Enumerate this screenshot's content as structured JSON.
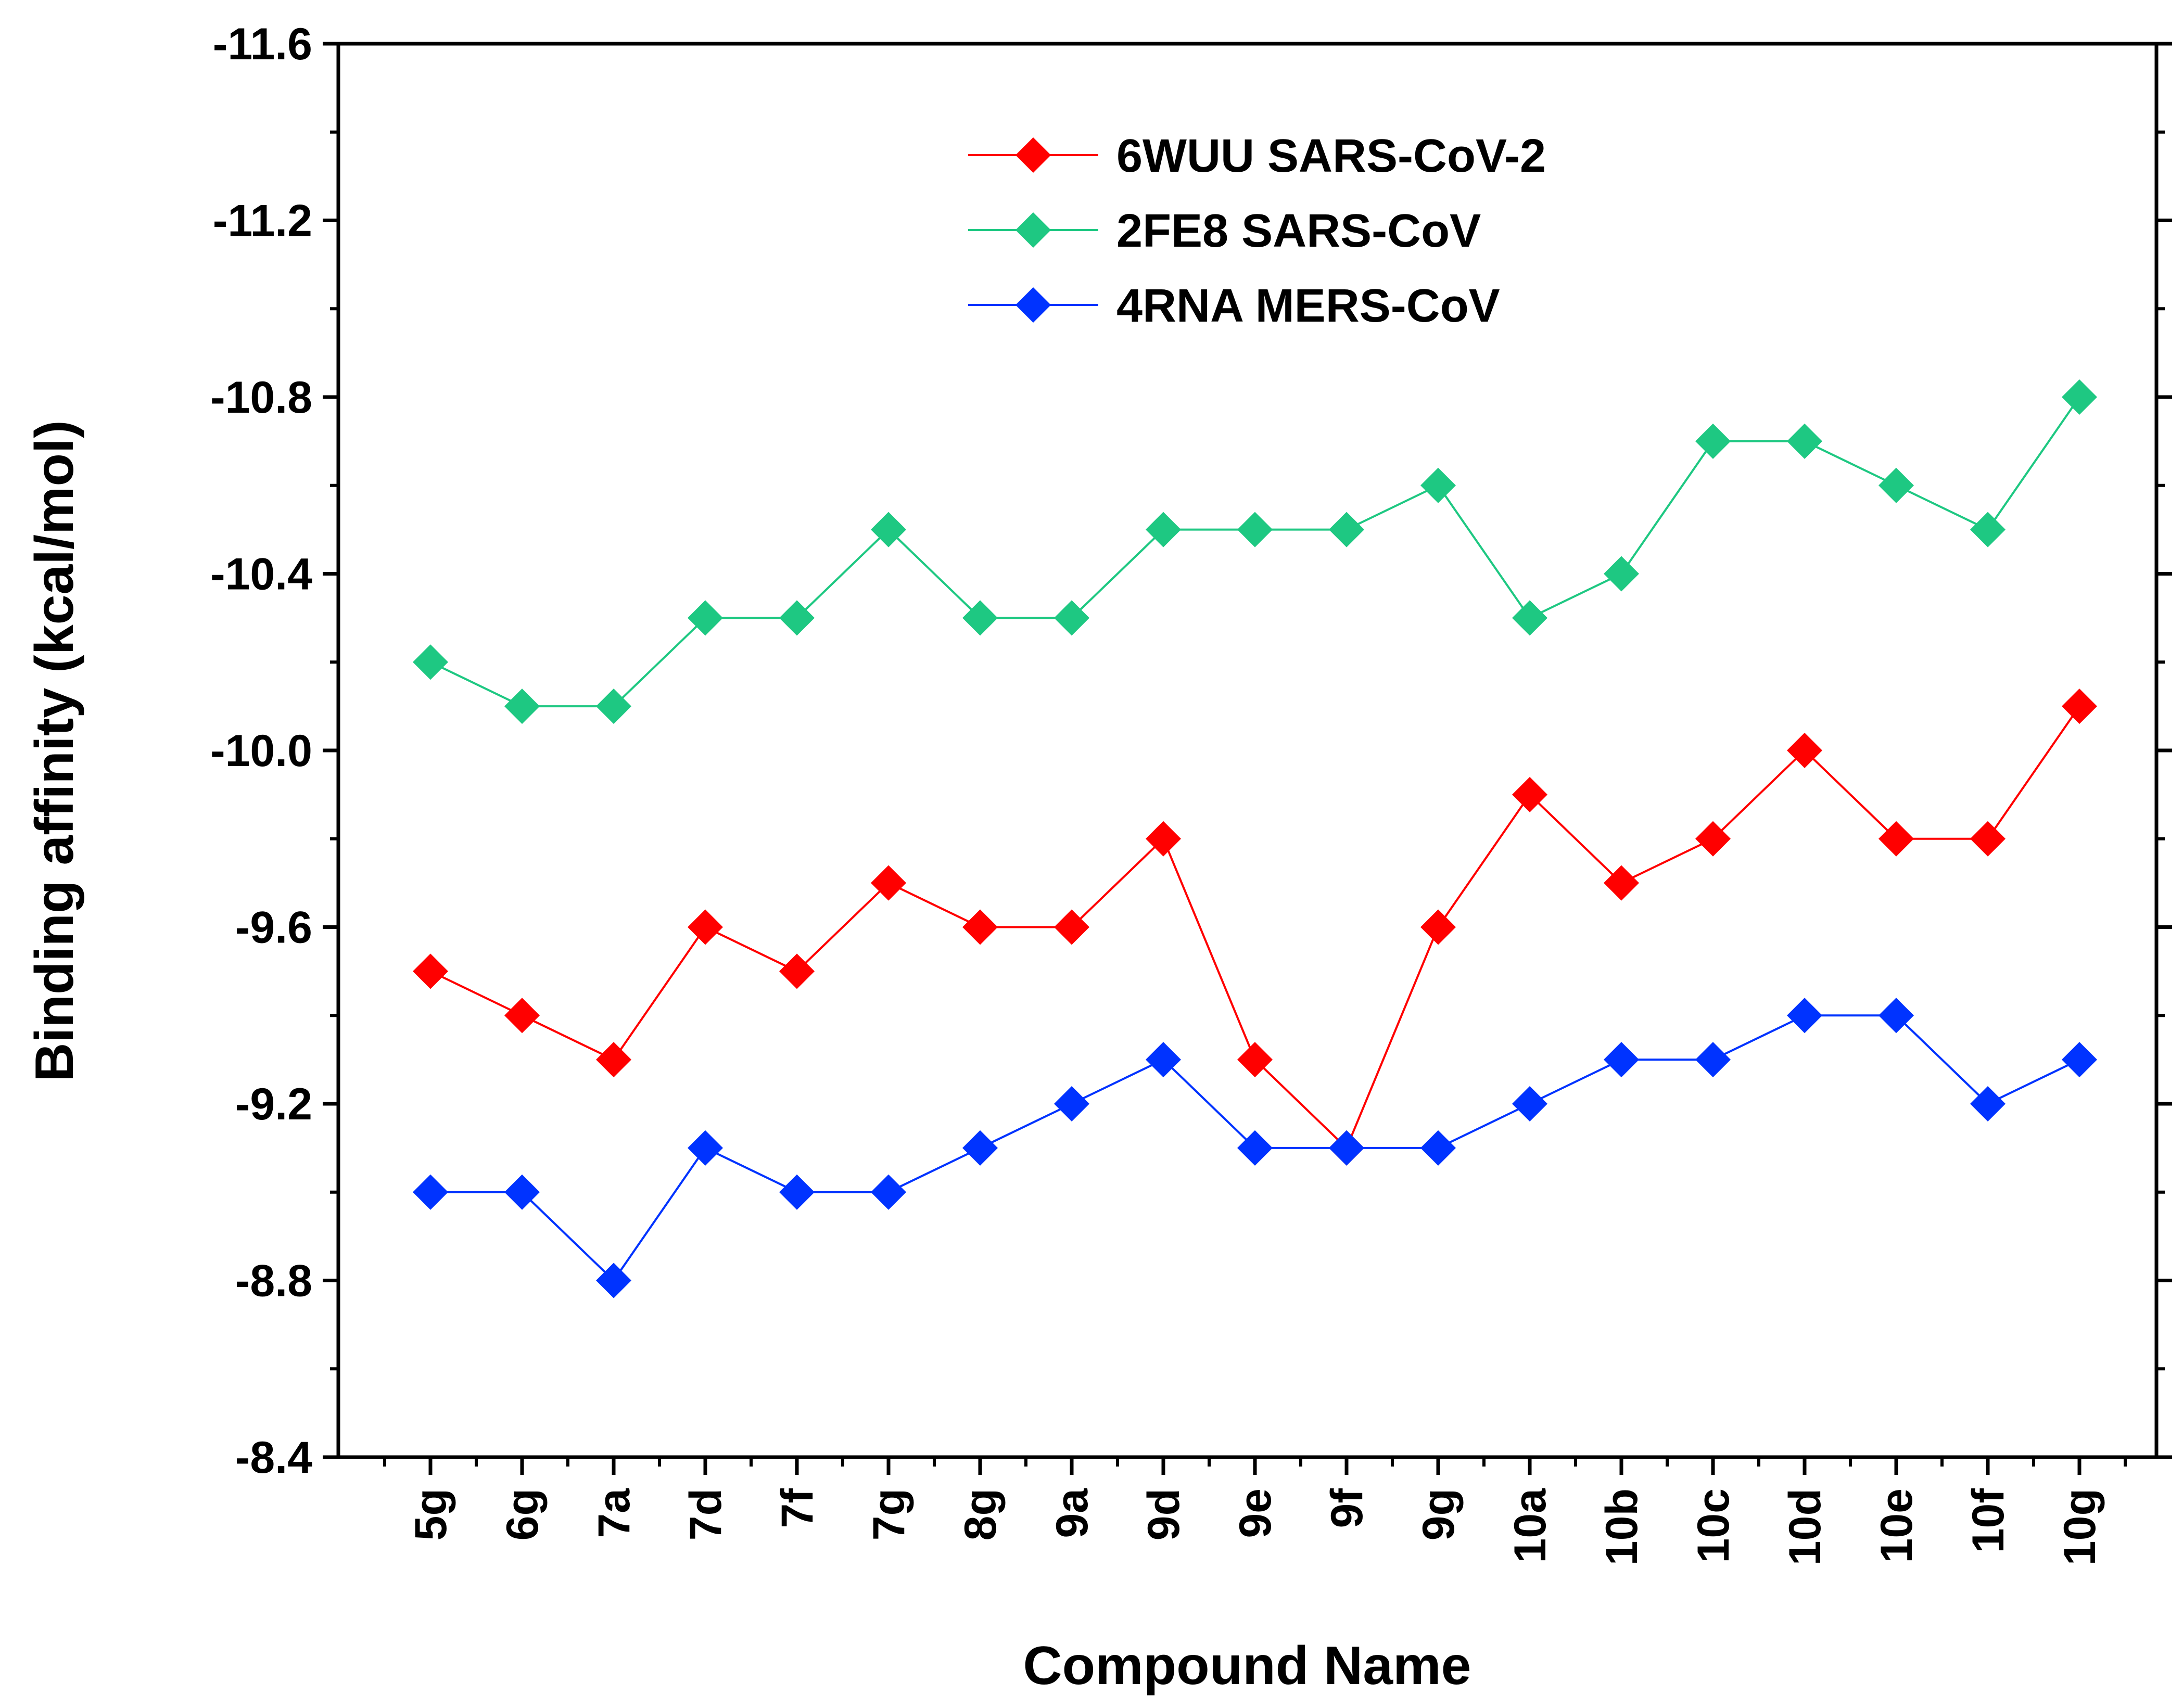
{
  "chart_data": {
    "type": "line",
    "title": "",
    "xlabel": "Compound Name",
    "ylabel": "Binding affinity (kcal/mol)",
    "ylim": [
      -8.4,
      -11.6
    ],
    "yticks": [
      -8.4,
      -8.8,
      -9.2,
      -9.6,
      -10.0,
      -10.4,
      -10.8,
      -11.2,
      -11.6
    ],
    "ytick_labels": [
      "-8.4",
      "-8.8",
      "-9.2",
      "-9.6",
      "-10.0",
      "-10.4",
      "-10.8",
      "-11.2",
      "-11.6"
    ],
    "y_axis_inverted": true,
    "legend_position": "top-center",
    "grid": false,
    "categories": [
      "5g",
      "6g",
      "7a",
      "7d",
      "7f",
      "7g",
      "8g",
      "9a",
      "9d",
      "9e",
      "9f",
      "9g",
      "10a",
      "10b",
      "10c",
      "10d",
      "10e",
      "10f",
      "10g"
    ],
    "series": [
      {
        "name": "6WUU SARS-CoV-2",
        "color": "#ff0000",
        "marker": "diamond",
        "values": [
          -9.5,
          -9.4,
          -9.3,
          -9.6,
          -9.5,
          -9.7,
          -9.6,
          -9.6,
          -9.8,
          -9.3,
          -9.1,
          -9.6,
          -9.9,
          -9.7,
          -9.8,
          -10.0,
          -9.8,
          -9.8,
          -10.1
        ]
      },
      {
        "name": "2FE8 SARS-CoV",
        "color": "#1ec882",
        "marker": "diamond",
        "values": [
          -10.2,
          -10.1,
          -10.1,
          -10.3,
          -10.3,
          -10.5,
          -10.3,
          -10.3,
          -10.5,
          -10.5,
          -10.5,
          -10.6,
          -10.3,
          -10.4,
          -10.7,
          -10.7,
          -10.6,
          -10.5,
          -10.8
        ]
      },
      {
        "name": "4RNA MERS-CoV",
        "color": "#0033ff",
        "marker": "diamond",
        "values": [
          -9.0,
          -9.0,
          -8.8,
          -9.1,
          -9.0,
          -9.0,
          -9.1,
          -9.2,
          -9.3,
          -9.1,
          -9.1,
          -9.1,
          -9.2,
          -9.3,
          -9.3,
          -9.4,
          -9.4,
          -9.2,
          -9.3
        ]
      }
    ]
  }
}
